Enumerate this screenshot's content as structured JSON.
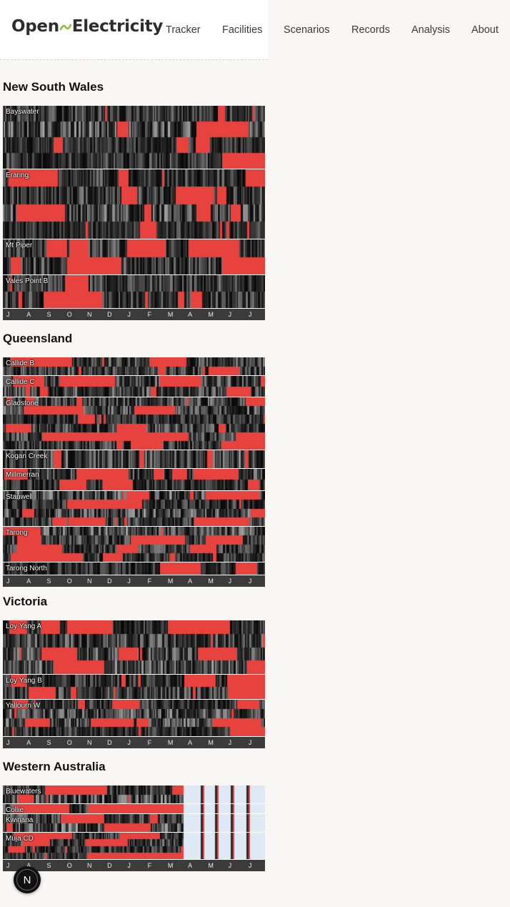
{
  "logo": {
    "left": "Open",
    "right": "Electricity"
  },
  "nav": [
    "Tracker",
    "Facilities",
    "Scenarios",
    "Records",
    "Analysis",
    "About"
  ],
  "months": [
    "J",
    "A",
    "S",
    "O",
    "N",
    "D",
    "J",
    "F",
    "M",
    "A",
    "M",
    "J",
    "J"
  ],
  "colors": {
    "offline": "#e8423f",
    "running": "#1a1a1a",
    "no_data": "#dfe9f5"
  },
  "regions": [
    {
      "name": "New South Wales",
      "facilities": [
        {
          "name": "Bayswater",
          "units": 4
        },
        {
          "name": "Eraring",
          "units": 4
        },
        {
          "name": "Mt Piper",
          "units": 2
        },
        {
          "name": "Vales Point B",
          "units": 2
        }
      ]
    },
    {
      "name": "Queensland",
      "facilities": [
        {
          "name": "Callide B",
          "units": 2
        },
        {
          "name": "Callide C",
          "units": 2
        },
        {
          "name": "Gladstone",
          "units": 6
        },
        {
          "name": "Kogan Creek",
          "units": 1
        },
        {
          "name": "Millmerran",
          "units": 2
        },
        {
          "name": "Stanwell",
          "units": 4
        },
        {
          "name": "Tarong",
          "units": 4
        },
        {
          "name": "Tarong North",
          "units": 1
        }
      ]
    },
    {
      "name": "Victoria",
      "facilities": [
        {
          "name": "Loy Yang A",
          "units": 4
        },
        {
          "name": "Loy Yang B",
          "units": 2
        },
        {
          "name": "Yallourn W",
          "units": 4
        }
      ]
    },
    {
      "name": "Western Australia",
      "facilities": [
        {
          "name": "Bluewaters",
          "units": 2
        },
        {
          "name": "Collie",
          "units": 1
        },
        {
          "name": "Kwinana",
          "units": 2
        },
        {
          "name": "Muja CD",
          "units": 4
        }
      ]
    }
  ],
  "fab_label": "N"
}
